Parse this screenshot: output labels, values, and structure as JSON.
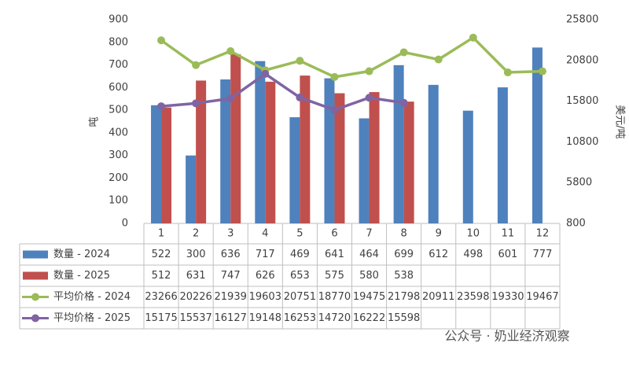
{
  "chart_data": {
    "type": "bar-line",
    "y_label": "吨",
    "y2_label": "美元/吨",
    "categories": [
      "1",
      "2",
      "3",
      "4",
      "5",
      "6",
      "7",
      "8",
      "9",
      "10",
      "11",
      "12"
    ],
    "series": [
      {
        "name": "数量 - 2024",
        "type": "bar",
        "color": "#4f81bd",
        "values": [
          522,
          300,
          636,
          717,
          469,
          641,
          464,
          699,
          612,
          498,
          601,
          777
        ]
      },
      {
        "name": "数量 - 2025",
        "type": "bar",
        "color": "#c0504d",
        "values": [
          512,
          631,
          747,
          626,
          653,
          575,
          580,
          538,
          null,
          null,
          null,
          null
        ]
      },
      {
        "name": "平均价格 - 2024",
        "type": "line",
        "axis": "y2",
        "color": "#9bbb59",
        "values": [
          23266,
          20226,
          21939,
          19603,
          20751,
          18770,
          19475,
          21798,
          20911,
          23598,
          19330,
          19467
        ]
      },
      {
        "name": "平均价格 - 2025",
        "type": "line",
        "axis": "y2",
        "color": "#8064a2",
        "values": [
          15175,
          15537,
          16127,
          19148,
          16253,
          14720,
          16222,
          15598,
          null,
          null,
          null,
          null
        ]
      }
    ],
    "ylim": [
      0,
      900
    ],
    "yticks": [
      0,
      100,
      200,
      300,
      400,
      500,
      600,
      700,
      800,
      900
    ],
    "y2lim": [
      800,
      25800
    ],
    "y2ticks": [
      800,
      5800,
      10800,
      15800,
      20800,
      25800
    ],
    "grid": false,
    "watermark": "公众号 · 奶业经济观察"
  }
}
